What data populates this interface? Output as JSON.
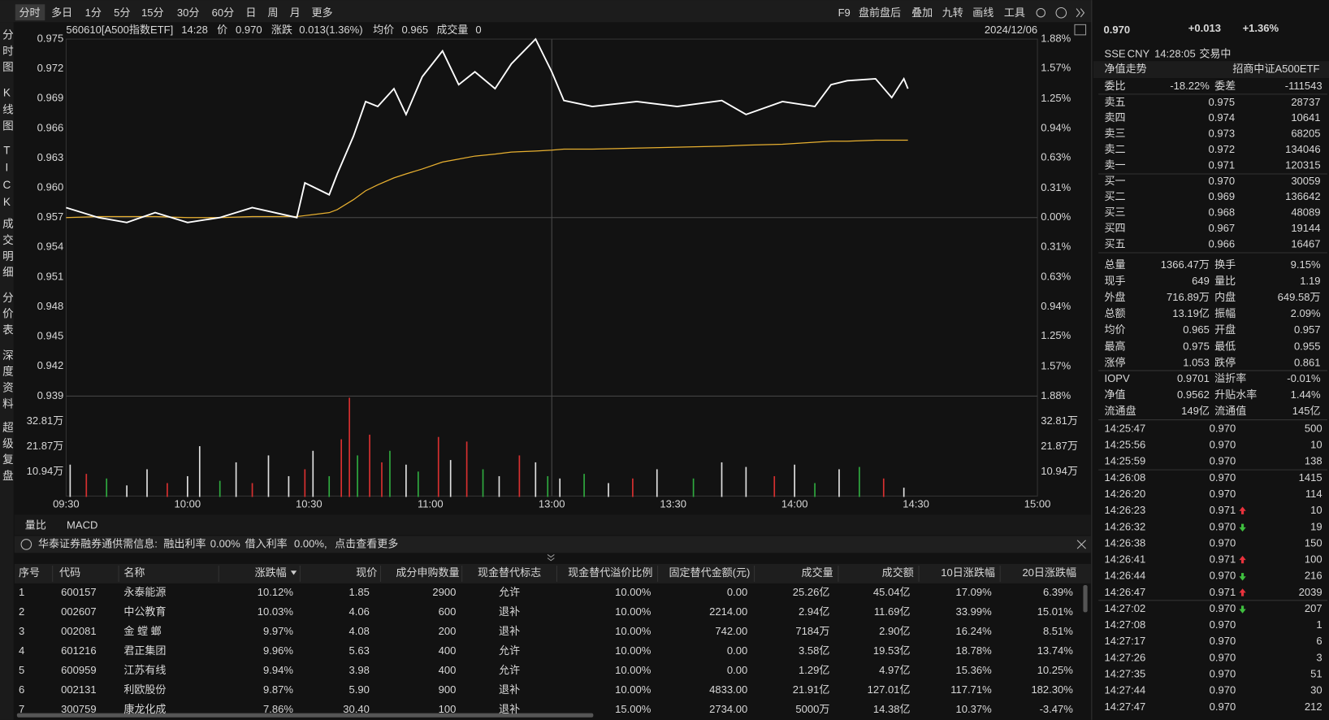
{
  "toolbar": {
    "periods": [
      "分时",
      "多日",
      "1分",
      "5分",
      "15分",
      "30分",
      "60分",
      "日",
      "周",
      "月",
      "更多"
    ],
    "tools": [
      "F9",
      "盘前盘后",
      "叠加",
      "九转",
      "画线",
      "工具"
    ]
  },
  "side_tabs": [
    "分时图",
    "K线图",
    "TICK",
    "成交明细",
    "分价表",
    "深度资料",
    "超级复盘"
  ],
  "chart_header": {
    "code": "560610[A500指数ETF]",
    "time": "14:28",
    "price_label": "价",
    "price": "0.970",
    "change_label": "涨跌",
    "change": "0.013(1.36%)",
    "avg_label": "均价",
    "avg": "0.965",
    "volume_label": "成交量",
    "volume": "0",
    "date": "2024/12/06"
  },
  "chart_data": [
    {
      "type": "line",
      "x": [
        "09:30",
        "09:38",
        "09:45",
        "09:52",
        "10:00",
        "10:08",
        "10:16",
        "10:27",
        "10:29",
        "10:35",
        "10:37",
        "10:41",
        "10:44",
        "10:47",
        "10:51",
        "10:54",
        "10:58",
        "11:03",
        "11:07",
        "11:11",
        "11:16",
        "11:20",
        "11:26",
        "11:30",
        "13:03",
        "13:10",
        "13:21",
        "13:31",
        "13:42",
        "13:48",
        "13:57",
        "14:05",
        "14:09",
        "14:13",
        "14:20",
        "14:24",
        "14:27",
        "14:28"
      ],
      "series": [
        {
          "color": "#ffffff",
          "values": [
            0.958,
            0.957,
            0.9565,
            0.9575,
            0.9565,
            0.957,
            0.958,
            0.957,
            0.9605,
            0.9593,
            0.9614,
            0.9652,
            0.9687,
            0.9682,
            0.97,
            0.9674,
            0.9712,
            0.9738,
            0.9704,
            0.9717,
            0.97,
            0.9725,
            0.975,
            0.9717,
            0.9688,
            0.9682,
            0.9687,
            0.9682,
            0.9688,
            0.9674,
            0.9687,
            0.9682,
            0.9704,
            0.9708,
            0.971,
            0.9691,
            0.971,
            0.97
          ]
        },
        {
          "color": "#e8b030",
          "values": [
            0.957,
            0.9571,
            0.9571,
            0.9571,
            0.957,
            0.957,
            0.9571,
            0.9571,
            0.9572,
            0.9575,
            0.9578,
            0.9588,
            0.9597,
            0.9603,
            0.961,
            0.9614,
            0.9619,
            0.9626,
            0.9629,
            0.9632,
            0.9634,
            0.9636,
            0.9637,
            0.9638,
            0.9639,
            0.9639,
            0.964,
            0.9641,
            0.9642,
            0.9643,
            0.9644,
            0.9646,
            0.9647,
            0.9647,
            0.9648,
            0.9648,
            0.9648,
            0.9648
          ]
        }
      ],
      "ylim": [
        0.939,
        0.975
      ],
      "yticks": [
        {
          "value": 0.975,
          "label": "0.975"
        },
        {
          "value": 0.972,
          "label": "0.972"
        },
        {
          "value": 0.969,
          "label": "0.969"
        },
        {
          "value": 0.966,
          "label": "0.966"
        },
        {
          "value": 0.963,
          "label": "0.963"
        },
        {
          "value": 0.96,
          "label": "0.960"
        },
        {
          "value": 0.957,
          "label": "0.957"
        },
        {
          "value": 0.954,
          "label": "0.954"
        },
        {
          "value": 0.951,
          "label": "0.951"
        },
        {
          "value": 0.948,
          "label": "0.948"
        },
        {
          "value": 0.945,
          "label": "0.945"
        },
        {
          "value": 0.942,
          "label": "0.942"
        },
        {
          "value": 0.939,
          "label": "0.939"
        }
      ],
      "y2lim": [
        -1.88,
        1.88
      ],
      "y2ticks": [
        {
          "value": 1.88,
          "label": "1.88%"
        },
        {
          "value": 1.57,
          "label": "1.57%"
        },
        {
          "value": 1.25,
          "label": "1.25%"
        },
        {
          "value": 0.94,
          "label": "0.94%"
        },
        {
          "value": 0.63,
          "label": "0.63%"
        },
        {
          "value": 0.31,
          "label": "0.31%"
        },
        {
          "value": 0,
          "label": "0.00%"
        },
        {
          "value": -0.31,
          "label": "0.31%"
        },
        {
          "value": -0.63,
          "label": "0.63%"
        },
        {
          "value": -0.94,
          "label": "0.94%"
        },
        {
          "value": -1.25,
          "label": "1.25%"
        },
        {
          "value": -1.57,
          "label": "1.57%"
        },
        {
          "value": -1.88,
          "label": "1.88%"
        }
      ]
    },
    {
      "type": "bar",
      "x": [
        "09:31",
        "09:35",
        "09:40",
        "09:45",
        "09:50",
        "09:55",
        "10:00",
        "10:03",
        "10:08",
        "10:12",
        "10:16",
        "10:20",
        "10:25",
        "10:29",
        "10:31",
        "10:35",
        "10:38",
        "10:40",
        "10:42",
        "10:45",
        "10:48",
        "10:50",
        "10:54",
        "10:57",
        "11:02",
        "11:05",
        "11:09",
        "11:13",
        "11:17",
        "11:22",
        "11:26",
        "11:29",
        "13:02",
        "13:08",
        "13:14",
        "13:20",
        "13:26",
        "13:35",
        "13:42",
        "13:48",
        "13:55",
        "14:00",
        "14:05",
        "14:11",
        "14:16",
        "14:22",
        "14:27"
      ],
      "values": [
        14,
        10,
        8,
        5,
        12,
        6,
        9,
        22,
        7,
        15,
        6,
        18,
        9,
        12,
        20,
        9,
        25,
        43,
        18,
        27,
        15,
        20,
        14,
        11,
        26,
        16,
        24,
        12,
        9,
        18,
        15,
        9,
        8,
        10,
        6,
        8,
        12,
        8,
        15,
        13,
        9,
        14,
        6,
        12,
        13,
        8,
        4
      ],
      "colors": [
        "#e0e0e0",
        "#d83030",
        "#2faa3f",
        "#e0e0e0",
        "#e0e0e0",
        "#d83030",
        "#e0e0e0",
        "#e0e0e0",
        "#2faa3f",
        "#e0e0e0",
        "#d83030",
        "#e0e0e0",
        "#e0e0e0",
        "#d83030",
        "#e0e0e0",
        "#2faa3f",
        "#d83030",
        "#d83030",
        "#2faa3f",
        "#d83030",
        "#d83030",
        "#2faa3f",
        "#e0e0e0",
        "#2faa3f",
        "#d83030",
        "#e0e0e0",
        "#d83030",
        "#2faa3f",
        "#e0e0e0",
        "#d83030",
        "#e0e0e0",
        "#2faa3f",
        "#e0e0e0",
        "#2faa3f",
        "#e0e0e0",
        "#d83030",
        "#e0e0e0",
        "#2faa3f",
        "#e0e0e0",
        "#e0e0e0",
        "#d83030",
        "#e0e0e0",
        "#2faa3f",
        "#e0e0e0",
        "#2faa3f",
        "#d83030",
        "#e0e0e0"
      ],
      "ylim": [
        0,
        43.75
      ],
      "yticks": [
        {
          "value": 32.81,
          "label": "32.81万"
        },
        {
          "value": 21.87,
          "label": "21.87万"
        },
        {
          "value": 10.94,
          "label": "10.94万"
        }
      ],
      "xticks": [
        "09:30",
        "10:00",
        "10:30",
        "11:00",
        "13:00",
        "13:30",
        "14:00",
        "14:30",
        "15:00"
      ]
    }
  ],
  "sub_tabs": [
    "量比",
    "MACD"
  ],
  "notice": {
    "source": "华泰证券融券通供需信息:",
    "lend_label": "融出利率",
    "lend_rate": "0.00%",
    "borrow_label": "借入利率",
    "borrow_rate": "0.00%,",
    "more": "点击查看更多"
  },
  "table": {
    "headers": [
      "序号",
      "代码",
      "名称",
      "涨跌幅",
      "现价",
      "成分申购数量",
      "现金替代标志",
      "现金替代溢价比例",
      "固定替代金额(元)",
      "成交量",
      "成交额",
      "10日涨跌幅",
      "20日涨跌幅"
    ],
    "rows": [
      [
        "1",
        "600157",
        "永泰能源",
        "10.12%",
        "1.85",
        "2900",
        "允许",
        "10.00%",
        "0.00",
        "25.26亿",
        "45.04亿",
        "17.09%",
        "6.39%"
      ],
      [
        "2",
        "002607",
        "中公教育",
        "10.03%",
        "4.06",
        "600",
        "退补",
        "10.00%",
        "2214.00",
        "2.94亿",
        "11.69亿",
        "33.99%",
        "15.01%"
      ],
      [
        "3",
        "002081",
        "金 螳 螂",
        "9.97%",
        "4.08",
        "200",
        "退补",
        "10.00%",
        "742.00",
        "7184万",
        "2.90亿",
        "16.24%",
        "8.51%"
      ],
      [
        "4",
        "601216",
        "君正集团",
        "9.96%",
        "5.63",
        "400",
        "允许",
        "10.00%",
        "0.00",
        "3.58亿",
        "19.53亿",
        "18.78%",
        "13.74%"
      ],
      [
        "5",
        "600959",
        "江苏有线",
        "9.94%",
        "3.98",
        "400",
        "允许",
        "10.00%",
        "0.00",
        "1.29亿",
        "4.97亿",
        "15.36%",
        "10.25%"
      ],
      [
        "6",
        "002131",
        "利欧股份",
        "9.87%",
        "5.90",
        "900",
        "退补",
        "10.00%",
        "4833.00",
        "21.91亿",
        "127.01亿",
        "117.71%",
        "182.30%"
      ],
      [
        "7",
        "300759",
        "康龙化成",
        "7.86%",
        "30.40",
        "100",
        "退补",
        "15.00%",
        "2734.00",
        "5000万",
        "14.38亿",
        "10.37%",
        "-3.47%"
      ]
    ]
  },
  "quote": {
    "price": "0.970",
    "change": "+0.013",
    "change_pct": "+1.36%",
    "exchange": "SSE",
    "currency": "CNY",
    "time": "14:28:05",
    "status": "交易中",
    "nav_label": "净值走势",
    "name": "招商中证A500ETF"
  },
  "order_ratio": [
    {
      "label": "委比",
      "value": "-18.22%"
    },
    {
      "label": "委差",
      "value": "-111543"
    }
  ],
  "asks": [
    {
      "label": "卖五",
      "price": "0.975",
      "volume": "28737"
    },
    {
      "label": "卖四",
      "price": "0.974",
      "volume": "10641"
    },
    {
      "label": "卖三",
      "price": "0.973",
      "volume": "68205"
    },
    {
      "label": "卖二",
      "price": "0.972",
      "volume": "134046"
    },
    {
      "label": "卖一",
      "price": "0.971",
      "volume": "120315"
    }
  ],
  "bids": [
    {
      "label": "买一",
      "price": "0.970",
      "volume": "30059"
    },
    {
      "label": "买二",
      "price": "0.969",
      "volume": "136642"
    },
    {
      "label": "买三",
      "price": "0.968",
      "volume": "48089"
    },
    {
      "label": "买四",
      "price": "0.967",
      "volume": "19144"
    },
    {
      "label": "买五",
      "price": "0.966",
      "volume": "16467"
    }
  ],
  "stats": [
    [
      {
        "label": "总量",
        "value": "1366.47万",
        "color": "#e6e6e6"
      },
      {
        "label": "换手",
        "value": "9.15%",
        "color": "#e6e6e6"
      }
    ],
    [
      {
        "label": "现手",
        "value": "649",
        "color": "#e6e6e6"
      },
      {
        "label": "量比",
        "value": "1.19",
        "color": "#e6e6e6"
      }
    ],
    [
      {
        "label": "外盘",
        "value": "716.89万",
        "color": "#e8323c"
      },
      {
        "label": "内盘",
        "value": "649.58万",
        "color": "#3fbf3f"
      }
    ],
    [
      {
        "label": "总额",
        "value": "13.19亿",
        "color": "#e6e6e6"
      },
      {
        "label": "振幅",
        "value": "2.09%",
        "color": "#e6e6e6"
      }
    ],
    [
      {
        "label": "均价",
        "value": "0.965",
        "color": "#e8323c"
      },
      {
        "label": "开盘",
        "value": "0.957",
        "color": "#e6e6e6"
      }
    ],
    [
      {
        "label": "最高",
        "value": "0.975",
        "color": "#e8323c"
      },
      {
        "label": "最低",
        "value": "0.955",
        "color": "#3fbf3f"
      }
    ],
    [
      {
        "label": "涨停",
        "value": "1.053",
        "color": "#e8323c"
      },
      {
        "label": "跌停",
        "value": "0.861",
        "color": "#3fbf3f"
      }
    ],
    [
      {
        "label": "IOPV",
        "value": "0.9701",
        "color": "#e6e6e6"
      },
      {
        "label": "溢折率",
        "value": "-0.01%",
        "color": "#3fbf3f"
      }
    ],
    [
      {
        "label": "净值",
        "value": "0.9562",
        "color": "#3fbf3f"
      },
      {
        "label": "升贴水率",
        "value": "1.44%",
        "color": "#e8323c"
      }
    ],
    [
      {
        "label": "流通盘",
        "value": "149亿",
        "color": "#e6e6e6"
      },
      {
        "label": "流通值",
        "value": "145亿",
        "color": "#e6e6e6"
      }
    ]
  ],
  "ticks": [
    {
      "time": "14:25:47",
      "price": "0.970",
      "volume": "500",
      "color": "#3fbf3f"
    },
    {
      "time": "14:25:56",
      "price": "0.970",
      "volume": "10",
      "color": "#3fbf3f"
    },
    {
      "time": "14:25:59",
      "price": "0.970",
      "volume": "138",
      "color": "#3fbf3f"
    },
    {
      "time": "14:26:08",
      "price": "0.970",
      "volume": "1415",
      "color": "#e8323c"
    },
    {
      "time": "14:26:20",
      "price": "0.970",
      "volume": "114",
      "color": "#3fbf3f"
    },
    {
      "time": "14:26:23",
      "price": "0.971",
      "volume": "10",
      "color": "#e8323c"
    },
    {
      "time": "14:26:32",
      "price": "0.970",
      "volume": "19",
      "color": "#3fbf3f"
    },
    {
      "time": "14:26:38",
      "price": "0.970",
      "volume": "150",
      "color": "#3fbf3f"
    },
    {
      "time": "14:26:41",
      "price": "0.971",
      "volume": "100",
      "color": "#e8323c"
    },
    {
      "time": "14:26:44",
      "price": "0.970",
      "volume": "216",
      "color": "#3fbf3f"
    },
    {
      "time": "14:26:47",
      "price": "0.971",
      "volume": "2039",
      "color": "#e8323c"
    },
    {
      "time": "14:27:02",
      "price": "0.970",
      "volume": "207",
      "color": "#3fbf3f"
    },
    {
      "time": "14:27:08",
      "price": "0.970",
      "volume": "1",
      "color": "#3fbf3f"
    },
    {
      "time": "14:27:17",
      "price": "0.970",
      "volume": "6",
      "color": "#3fbf3f"
    },
    {
      "time": "14:27:26",
      "price": "0.970",
      "volume": "3",
      "color": "#3fbf3f"
    },
    {
      "time": "14:27:35",
      "price": "0.970",
      "volume": "51",
      "color": "#3fbf3f"
    },
    {
      "time": "14:27:44",
      "price": "0.970",
      "volume": "30",
      "color": "#3fbf3f"
    },
    {
      "time": "14:27:47",
      "price": "0.970",
      "volume": "212",
      "color": "#3fbf3f"
    }
  ]
}
